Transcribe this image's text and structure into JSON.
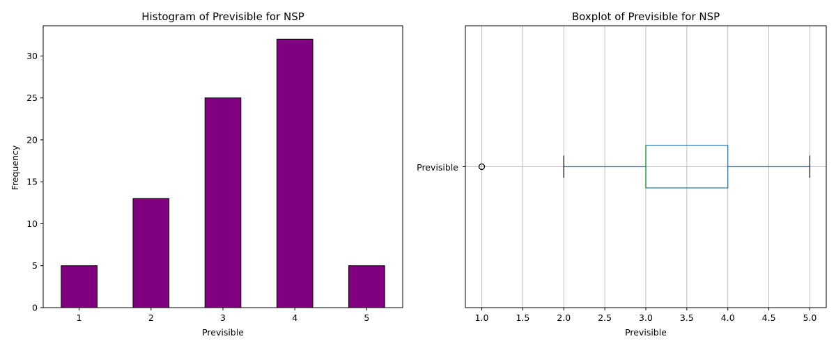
{
  "chart_data": [
    {
      "type": "bar",
      "title": "Histogram of Previsible for NSP",
      "xlabel": "Previsible",
      "ylabel": "Frequency",
      "categories": [
        "1",
        "2",
        "3",
        "4",
        "5"
      ],
      "values": [
        5,
        13,
        25,
        32,
        5
      ],
      "ylim": [
        0,
        33.6
      ],
      "yticks": [
        0,
        5,
        10,
        15,
        20,
        25,
        30
      ],
      "grid": false,
      "colors": {
        "bar": "#800080",
        "edge": "#000000"
      }
    },
    {
      "type": "boxplot",
      "orientation": "horizontal",
      "title": "Boxplot of Previsible for NSP",
      "xlabel": "Previsible",
      "category": "Previsible",
      "stats": {
        "whisker_low": 2.0,
        "q1": 3.0,
        "median": 3.0,
        "q3": 4.0,
        "whisker_high": 5.0,
        "outliers": [
          1.0
        ]
      },
      "xlim": [
        0.8,
        5.2
      ],
      "xticks": [
        "1.0",
        "1.5",
        "2.0",
        "2.5",
        "3.0",
        "3.5",
        "4.0",
        "4.5",
        "5.0"
      ],
      "grid": true,
      "colors": {
        "box": "#1f77b4",
        "median": "#2ca02c",
        "whisker_cap": "#000000",
        "grid": "#b0b0b0"
      }
    }
  ]
}
